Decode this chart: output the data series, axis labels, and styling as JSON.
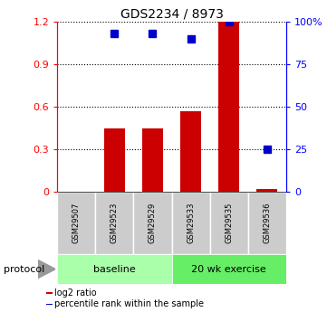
{
  "title": "GDS2234 / 8973",
  "samples": [
    "GSM29507",
    "GSM29523",
    "GSM29529",
    "GSM29533",
    "GSM29535",
    "GSM29536"
  ],
  "log2_ratio": [
    0.0,
    0.45,
    0.45,
    0.57,
    1.2,
    0.02
  ],
  "percentile_rank": [
    null,
    93.0,
    93.0,
    90.0,
    100.0,
    25.0
  ],
  "bar_color": "#cc0000",
  "dot_color": "#0000cc",
  "left_ylim": [
    0,
    1.2
  ],
  "right_ylim": [
    0,
    100
  ],
  "left_yticks": [
    0,
    0.3,
    0.6,
    0.9,
    1.2
  ],
  "right_yticks": [
    0,
    25,
    50,
    75,
    100
  ],
  "right_yticklabels": [
    "0",
    "25",
    "50",
    "75",
    "100%"
  ],
  "groups": [
    {
      "label": "baseline",
      "start": 0,
      "end": 3,
      "color": "#aaffaa"
    },
    {
      "label": "20 wk exercise",
      "start": 3,
      "end": 6,
      "color": "#66ee66"
    }
  ],
  "legend_items": [
    {
      "color": "#cc0000",
      "label": "log2 ratio"
    },
    {
      "color": "#0000cc",
      "label": "percentile rank within the sample"
    }
  ],
  "protocol_label": "protocol",
  "background_color": "#ffffff",
  "sample_box_color": "#cccccc",
  "sample_box_edge": "#aaaaaa"
}
